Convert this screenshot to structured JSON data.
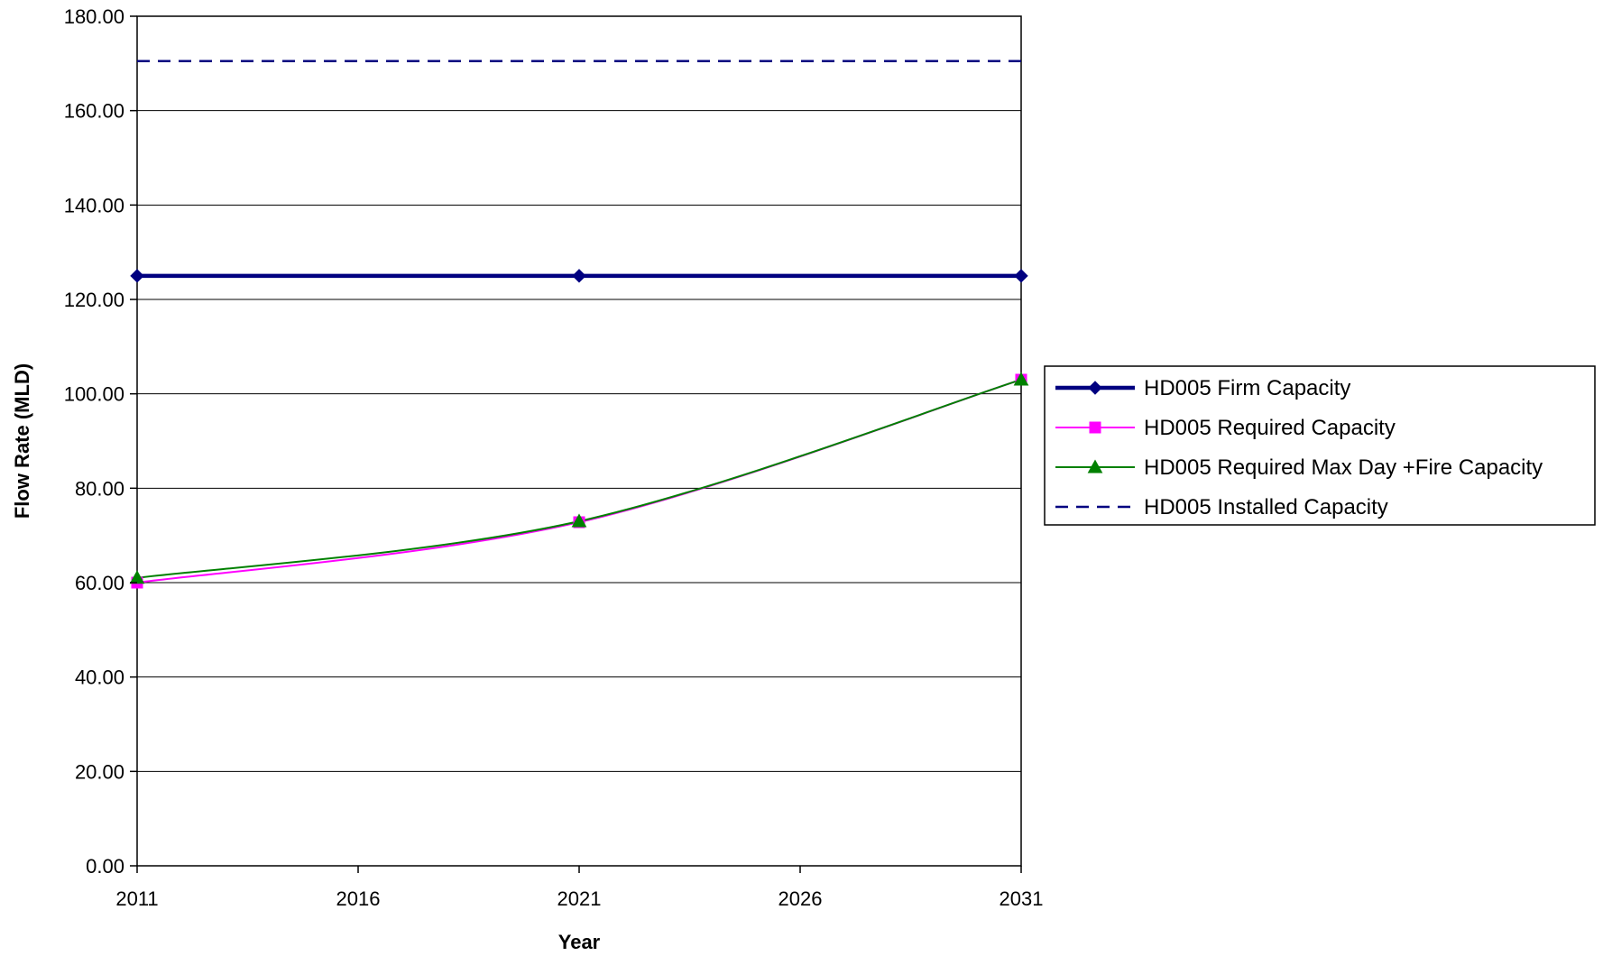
{
  "chart_data": {
    "type": "line",
    "title": "",
    "xlabel": "Year",
    "ylabel": "Flow Rate (MLD)",
    "xlim": [
      2011,
      2031
    ],
    "ylim": [
      0,
      180
    ],
    "x_ticks": [
      2011,
      2016,
      2021,
      2026,
      2031
    ],
    "y_ticks": [
      0,
      20,
      40,
      60,
      80,
      100,
      120,
      140,
      160,
      180
    ],
    "x_tick_labels": [
      "2011",
      "2016",
      "2021",
      "2026",
      "2031"
    ],
    "y_tick_labels": [
      "0.00",
      "20.00",
      "40.00",
      "60.00",
      "80.00",
      "100.00",
      "120.00",
      "140.00",
      "160.00",
      "180.00"
    ],
    "grid": "horizontal",
    "legend_position": "right",
    "series": [
      {
        "name": "HD005 Firm Capacity",
        "x": [
          2011,
          2021,
          2031
        ],
        "values": [
          125,
          125,
          125
        ],
        "color": "#000080",
        "marker": "diamond",
        "line_style": "solid",
        "smooth": false
      },
      {
        "name": "HD005 Required Capacity",
        "x": [
          2011,
          2021,
          2031
        ],
        "values": [
          60,
          72.8,
          103
        ],
        "color": "#FF00FF",
        "marker": "square",
        "line_style": "solid",
        "smooth": true
      },
      {
        "name": "HD005 Required Max Day +Fire Capacity",
        "x": [
          2011,
          2021,
          2031
        ],
        "values": [
          61,
          73,
          103
        ],
        "color": "#008000",
        "marker": "triangle",
        "line_style": "solid",
        "smooth": true
      },
      {
        "name": "HD005 Installed Capacity",
        "x": [
          2011,
          2031
        ],
        "values": [
          170.5,
          170.5
        ],
        "color": "#000080",
        "marker": "none",
        "line_style": "dashed",
        "smooth": false
      }
    ]
  }
}
